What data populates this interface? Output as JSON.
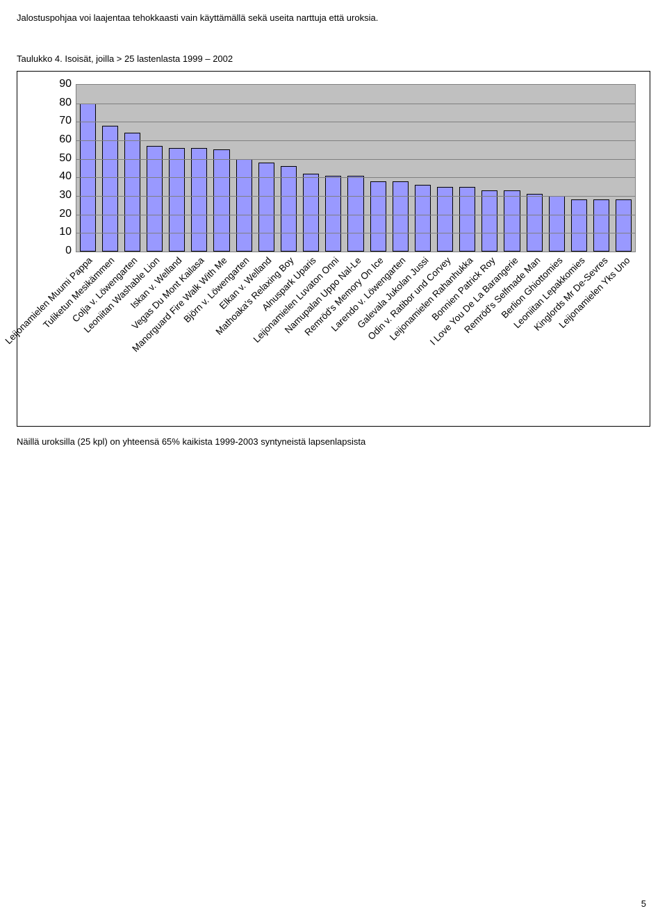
{
  "intro_text": "Jalostuspohjaa voi laajentaa tehokkaasti vain käyttämällä sekä useita narttuja että uroksia.",
  "caption": "Taulukko 4.  Isoisät, joilla > 25 lastenlasta 1999 – 2002",
  "after_chart": "Näillä uroksilla (25 kpl) on yhteensä 65% kaikista 1999-2003 syntyneistä lapsenlapsista",
  "page_number": "5",
  "chart": {
    "type": "bar",
    "ylim": [
      0,
      90
    ],
    "ytick_step": 10,
    "yticks": [
      0,
      10,
      20,
      30,
      40,
      50,
      60,
      70,
      80,
      90
    ],
    "plot_bg": "#c0c0c0",
    "grid_color": "#7f7f7f",
    "bar_fill": "#9999ff",
    "bar_border": "#000000",
    "label_fontsize": 13.5,
    "tick_fontsize": 16,
    "categories": [
      "Leijonamielen Muumi Pappa",
      "Tuliketun Mesikämmen",
      "Colja v. Löwengarten",
      "Leoniitan Washable Lion",
      "Iskan v. Welland",
      "Vegas Du Mont Kailasa",
      "Manorguard Fire Walk With Me",
      "Björn v. Löwengarten",
      "Elkan v. Welland",
      "Mathoaka's Relaxing Boy",
      "Alnuspark Uparis",
      "Leijonamielen Luvaton Onni",
      "Namupalan Uppo Nal-Le",
      "Remröd's Memory On Ice",
      "Larendo v. Löwengarten",
      "Galevala Jukolan Jussi",
      "Odin v. Ratibor und Corvey",
      "Leijonamielen Rahanhukka",
      "Bonnien Patrick Roy",
      "I Love You De La Barangerie",
      "Remröd's Selfmade Man",
      "Berlion Ghiottomies",
      "Leoniitan Lepakkomies",
      "Kinglords Mr De-Sevres",
      "Leijonamielen Yks Uno"
    ],
    "values": [
      80,
      68,
      64,
      57,
      56,
      56,
      55,
      50,
      48,
      46,
      42,
      41,
      41,
      38,
      38,
      36,
      35,
      35,
      33,
      33,
      31,
      30,
      28,
      28,
      28
    ]
  }
}
